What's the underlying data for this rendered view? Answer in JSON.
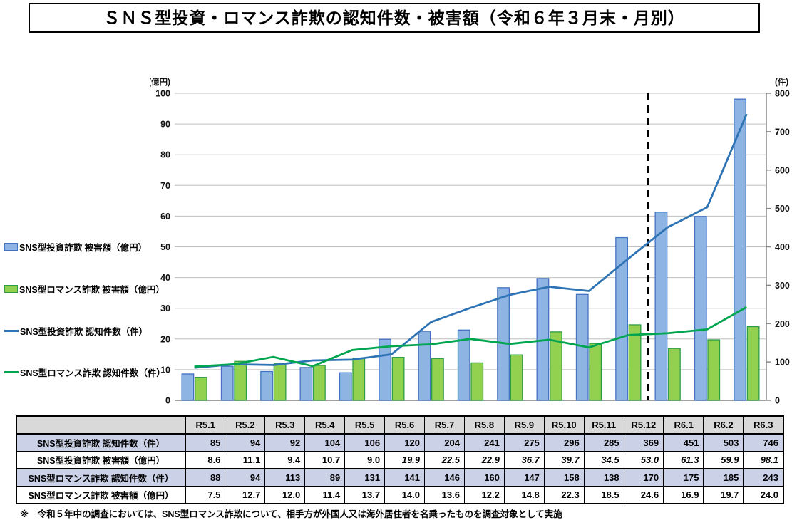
{
  "title": "ＳＮＳ型投資・ロマンス詐欺の認知件数・被害額（令和６年３月末・月別）",
  "footnote": "※　令和５年中の調査においては、SNS型ロマンス詐欺について、相手方が外国人又は海外居住者を名乗ったものを調査対象として実施",
  "colors": {
    "invest_bar_fill": "#8DB4E2",
    "invest_bar_border": "#4472C4",
    "romance_bar_fill": "#92D050",
    "romance_bar_border": "#2E9E44",
    "invest_line": "#2E74B5",
    "romance_line": "#00A64F",
    "grid": "#BFBFBF",
    "axis": "#808080",
    "divider": "#000000",
    "table_header_bg": "#D9D9D9",
    "table_shaded_bg": "#CBD2E8"
  },
  "chart_data": {
    "type": "combo (bar + line, dual axis)",
    "categories": [
      "R5.1",
      "R5.2",
      "R5.3",
      "R5.4",
      "R5.5",
      "R5.6",
      "R5.7",
      "R5.8",
      "R5.9",
      "R5.10",
      "R5.11",
      "R5.12",
      "R6.1",
      "R6.2",
      "R6.3"
    ],
    "series": [
      {
        "name": "SNS型投資詐欺 被害額（億円）",
        "type": "bar",
        "axis": "left",
        "color": "#8DB4E2",
        "border": "#4472C4",
        "values": [
          8.6,
          11.1,
          9.4,
          10.7,
          9.0,
          19.9,
          22.5,
          22.9,
          36.7,
          39.7,
          34.5,
          53.0,
          61.3,
          59.9,
          98.1
        ]
      },
      {
        "name": "SNS型ロマンス詐欺 被害額（億円）",
        "type": "bar",
        "axis": "left",
        "color": "#92D050",
        "border": "#2E9E44",
        "values": [
          7.5,
          12.7,
          12.0,
          11.4,
          13.7,
          14.0,
          13.6,
          12.2,
          14.8,
          22.3,
          18.5,
          24.6,
          16.9,
          19.7,
          24.0
        ]
      },
      {
        "name": "SNS型投資詐欺 認知件数（件）",
        "type": "line",
        "axis": "right",
        "color": "#2E74B5",
        "values": [
          85,
          94,
          92,
          104,
          106,
          120,
          204,
          241,
          275,
          296,
          285,
          369,
          451,
          503,
          746
        ]
      },
      {
        "name": "SNS型ロマンス詐欺 認知件数（件）",
        "type": "line",
        "axis": "right",
        "color": "#00A64F",
        "values": [
          88,
          94,
          113,
          89,
          131,
          141,
          146,
          160,
          147,
          158,
          138,
          170,
          175,
          185,
          243
        ]
      }
    ],
    "left_axis": {
      "caption": "(億円)",
      "min": 0,
      "max": 100,
      "step": 10
    },
    "right_axis": {
      "caption": "(件)",
      "min": 0,
      "max": 800,
      "step": 100
    },
    "divider_after": "R5.12",
    "grid": true,
    "legend_position": "left"
  },
  "table": {
    "corner": "",
    "col_headers": [
      "R5.1",
      "R5.2",
      "R5.3",
      "R5.4",
      "R5.5",
      "R5.6",
      "R5.7",
      "R5.8",
      "R5.9",
      "R5.10",
      "R5.11",
      "R5.12",
      "R6.1",
      "R6.2",
      "R6.3"
    ],
    "rows": [
      {
        "label": "SNS型投資詐欺 認知件数（件）",
        "shaded": true,
        "values": [
          "85",
          "94",
          "92",
          "104",
          "106",
          "120",
          "204",
          "241",
          "275",
          "296",
          "285",
          "369",
          "451",
          "503",
          "746"
        ]
      },
      {
        "label": "SNS型投資詐欺 被害額（億円）",
        "shaded": false,
        "italic_from": 5,
        "values": [
          "8.6",
          "11.1",
          "9.4",
          "10.7",
          "9.0",
          "19.9",
          "22.5",
          "22.9",
          "36.7",
          "39.7",
          "34.5",
          "53.0",
          "61.3",
          "59.9",
          "98.1"
        ]
      },
      {
        "label": "SNS型ロマンス詐欺 認知件数（件）",
        "shaded": true,
        "values": [
          "88",
          "94",
          "113",
          "89",
          "131",
          "141",
          "146",
          "160",
          "147",
          "158",
          "138",
          "170",
          "175",
          "185",
          "243"
        ]
      },
      {
        "label": "SNS型ロマンス詐欺 被害額（億円）",
        "shaded": false,
        "values": [
          "7.5",
          "12.7",
          "12.0",
          "11.4",
          "13.7",
          "14.0",
          "13.6",
          "12.2",
          "14.8",
          "22.3",
          "18.5",
          "24.6",
          "16.9",
          "19.7",
          "24.0"
        ]
      }
    ]
  }
}
